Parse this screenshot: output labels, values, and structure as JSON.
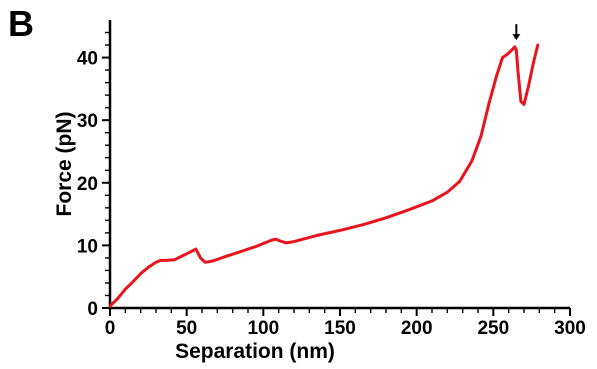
{
  "panel_label": "B",
  "chart_data": {
    "type": "line",
    "title": "",
    "xlabel": "Separation (nm)",
    "ylabel": "Force (pN)",
    "xlim": [
      0,
      300
    ],
    "ylim": [
      0,
      46
    ],
    "xticks": [
      0,
      50,
      100,
      150,
      200,
      250,
      300
    ],
    "yticks": [
      0,
      10,
      20,
      30,
      40
    ],
    "grid": false,
    "legend": "none",
    "line_color": "#e8141c",
    "annotations": [
      {
        "type": "arrow",
        "x": 265,
        "y": 41.5,
        "label": ""
      }
    ],
    "series": [
      {
        "x": [
          0,
          5,
          10,
          15,
          20,
          25,
          30,
          33,
          37,
          42,
          47,
          52,
          56,
          59,
          62,
          67,
          75,
          85,
          95,
          105,
          108,
          111,
          115,
          120,
          135,
          150,
          165,
          180,
          195,
          210,
          220,
          228,
          236,
          242,
          247,
          252,
          256,
          259,
          262,
          264,
          265,
          266,
          268,
          270,
          273,
          276,
          279
        ],
        "y": [
          0.3,
          1.5,
          3,
          4.2,
          5.5,
          6.5,
          7.3,
          7.6,
          7.6,
          7.7,
          8.3,
          8.9,
          9.4,
          8.0,
          7.3,
          7.5,
          8.2,
          9.0,
          9.8,
          10.8,
          11.0,
          10.7,
          10.4,
          10.6,
          11.6,
          12.4,
          13.3,
          14.4,
          15.7,
          17.1,
          18.5,
          20.2,
          23.5,
          27.5,
          32.5,
          37.0,
          40.0,
          40.5,
          41.2,
          41.7,
          41.2,
          38.0,
          33.0,
          32.5,
          35.5,
          39.0,
          42.0
        ]
      }
    ]
  }
}
